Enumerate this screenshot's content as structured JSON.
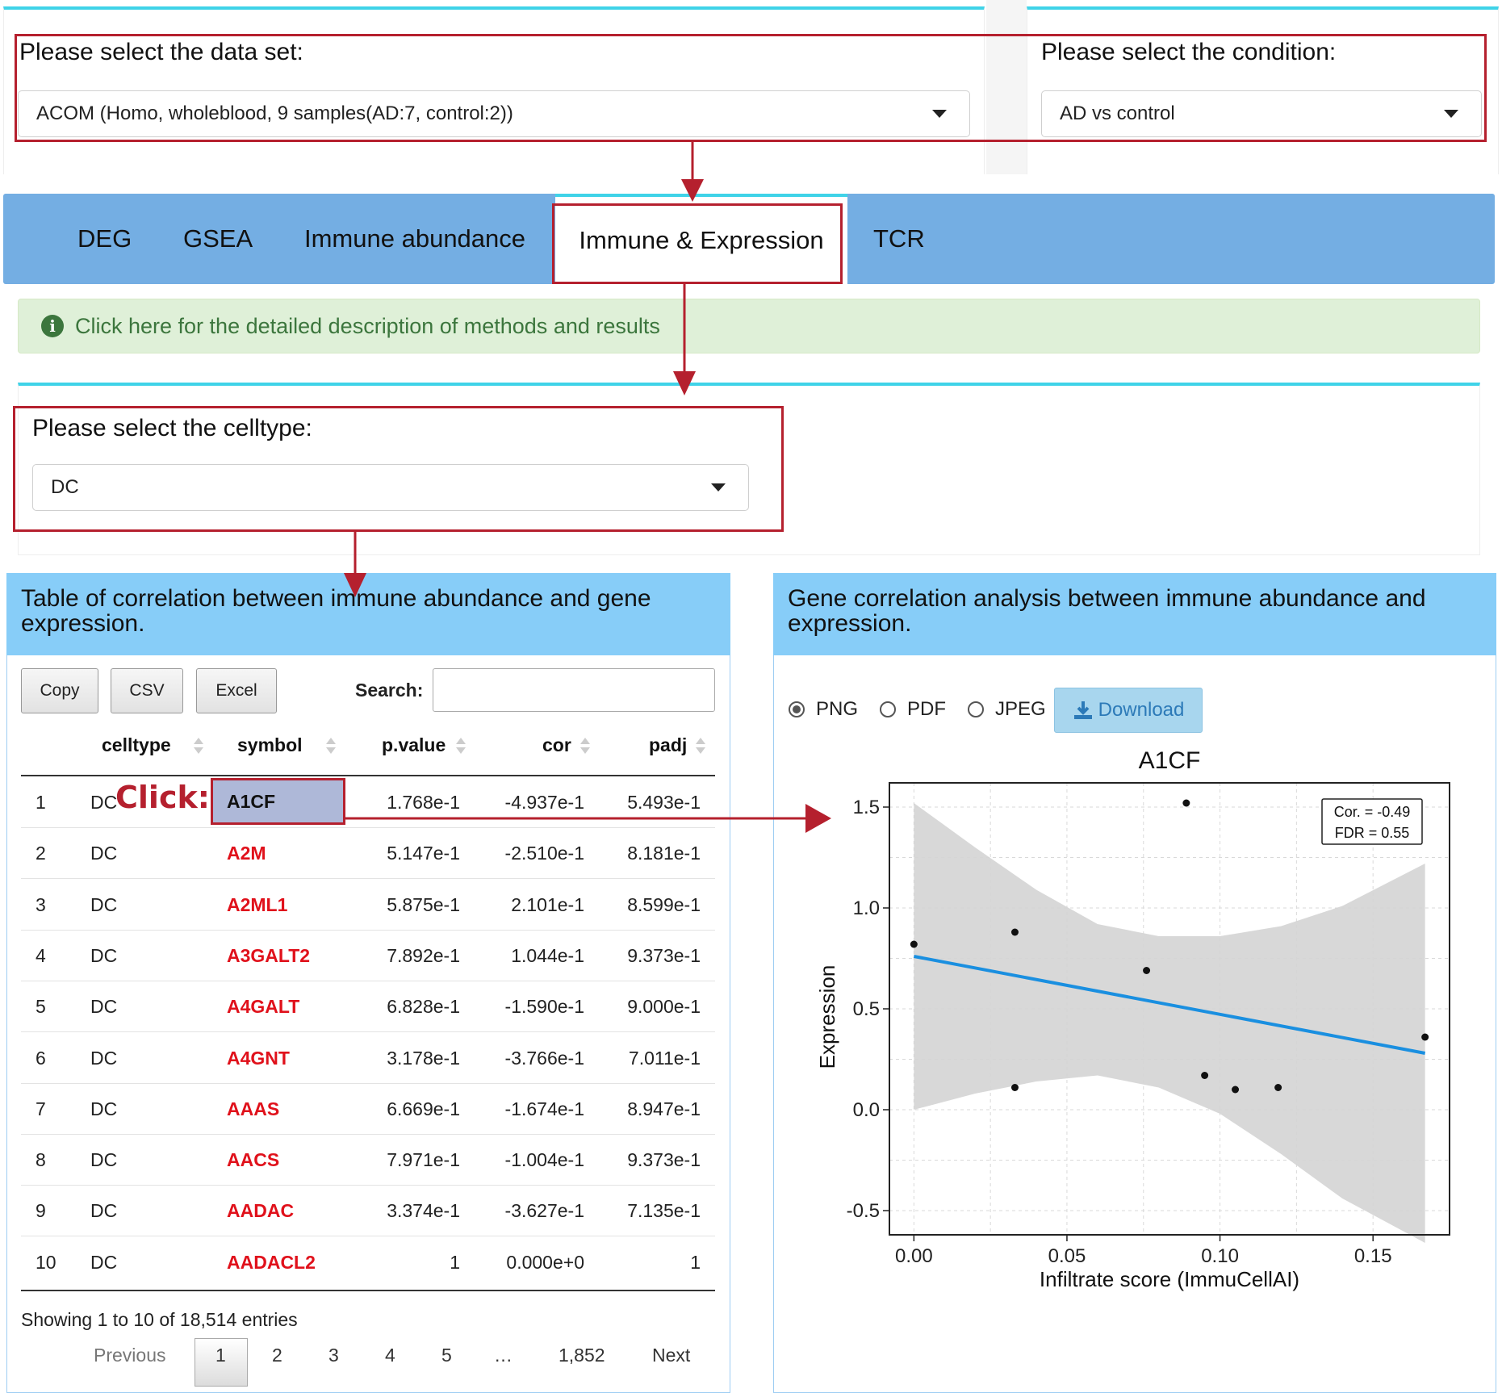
{
  "dataset": {
    "label": "Please select the data set:",
    "value": "ACOM (Homo, wholeblood, 9 samples(AD:7, control:2))"
  },
  "condition": {
    "label": "Please select the condition:",
    "value": "AD vs control"
  },
  "tabs": [
    {
      "label": "DEG"
    },
    {
      "label": "GSEA"
    },
    {
      "label": "Immune abundance"
    },
    {
      "label": "Immune & Expression"
    },
    {
      "label": "TCR"
    }
  ],
  "alert": {
    "text": "Click here for the detailed description of methods and results"
  },
  "celltype": {
    "label": "Please select the celltype:",
    "value": "DC"
  },
  "table_panel": {
    "title": "Table of correlation between immune abundance and gene expression.",
    "buttons": [
      "Copy",
      "CSV",
      "Excel"
    ],
    "search_label": "Search:",
    "search_value": "",
    "columns": [
      "celltype",
      "symbol",
      "p.value",
      "cor",
      "padj"
    ],
    "rows": [
      {
        "idx": "1",
        "celltype": "DC",
        "symbol": "A1CF",
        "pvalue": "1.768e-1",
        "cor": "-4.937e-1",
        "padj": "5.493e-1"
      },
      {
        "idx": "2",
        "celltype": "DC",
        "symbol": "A2M",
        "pvalue": "5.147e-1",
        "cor": "-2.510e-1",
        "padj": "8.181e-1"
      },
      {
        "idx": "3",
        "celltype": "DC",
        "symbol": "A2ML1",
        "pvalue": "5.875e-1",
        "cor": "2.101e-1",
        "padj": "8.599e-1"
      },
      {
        "idx": "4",
        "celltype": "DC",
        "symbol": "A3GALT2",
        "pvalue": "7.892e-1",
        "cor": "1.044e-1",
        "padj": "9.373e-1"
      },
      {
        "idx": "5",
        "celltype": "DC",
        "symbol": "A4GALT",
        "pvalue": "6.828e-1",
        "cor": "-1.590e-1",
        "padj": "9.000e-1"
      },
      {
        "idx": "6",
        "celltype": "DC",
        "symbol": "A4GNT",
        "pvalue": "3.178e-1",
        "cor": "-3.766e-1",
        "padj": "7.011e-1"
      },
      {
        "idx": "7",
        "celltype": "DC",
        "symbol": "AAAS",
        "pvalue": "6.669e-1",
        "cor": "-1.674e-1",
        "padj": "8.947e-1"
      },
      {
        "idx": "8",
        "celltype": "DC",
        "symbol": "AACS",
        "pvalue": "7.971e-1",
        "cor": "-1.004e-1",
        "padj": "9.373e-1"
      },
      {
        "idx": "9",
        "celltype": "DC",
        "symbol": "AADAC",
        "pvalue": "3.374e-1",
        "cor": "-3.627e-1",
        "padj": "7.135e-1"
      },
      {
        "idx": "10",
        "celltype": "DC",
        "symbol": "AADACL2",
        "pvalue": "1",
        "cor": "0.000e+0",
        "padj": "1"
      }
    ],
    "info": "Showing 1 to 10 of 18,514 entries",
    "pagination": {
      "previous": "Previous",
      "pages": [
        "1",
        "2",
        "3",
        "4",
        "5",
        "…",
        "1,852"
      ],
      "current": "1",
      "next": "Next"
    },
    "click_annotation": "Click:"
  },
  "plot_panel": {
    "title": "Gene correlation analysis between immune abundance and expression.",
    "formats": [
      "PNG",
      "PDF",
      "JPEG"
    ],
    "selected_format": "PNG",
    "download_label": "Download"
  },
  "chart_data": {
    "type": "scatter",
    "title": "A1CF",
    "xlabel": "Infiltrate score (ImmuCellAI)",
    "ylabel": "Expression",
    "xlim": [
      -0.008,
      0.175
    ],
    "ylim": [
      -0.62,
      1.62
    ],
    "x_ticks": [
      0.0,
      0.05,
      0.1,
      0.15
    ],
    "x_tick_labels": [
      "0.00",
      "0.05",
      "0.10",
      "0.15"
    ],
    "y_ticks": [
      -0.5,
      0.0,
      0.5,
      1.0,
      1.5
    ],
    "y_tick_labels": [
      "-0.5",
      "0.0",
      "0.5",
      "1.0",
      "1.5"
    ],
    "points": [
      {
        "x": 0.0,
        "y": 0.82
      },
      {
        "x": 0.033,
        "y": 0.88
      },
      {
        "x": 0.033,
        "y": 0.11
      },
      {
        "x": 0.076,
        "y": 0.69
      },
      {
        "x": 0.089,
        "y": 1.52
      },
      {
        "x": 0.095,
        "y": 0.17
      },
      {
        "x": 0.105,
        "y": 0.1
      },
      {
        "x": 0.119,
        "y": 0.11
      },
      {
        "x": 0.167,
        "y": 0.36
      }
    ],
    "fit_line": {
      "x": [
        0.0,
        0.167
      ],
      "y": [
        0.76,
        0.28
      ]
    },
    "ci_band": {
      "x": [
        0.0,
        0.02,
        0.04,
        0.06,
        0.08,
        0.1,
        0.12,
        0.14,
        0.167
      ],
      "upper": [
        1.52,
        1.3,
        1.09,
        0.92,
        0.86,
        0.86,
        0.91,
        1.01,
        1.22
      ],
      "lower": [
        0.0,
        0.08,
        0.14,
        0.17,
        0.11,
        -0.02,
        -0.22,
        -0.44,
        -0.66
      ]
    },
    "annotation": [
      "Cor. = -0.49",
      "FDR = 0.55"
    ],
    "grid": true,
    "colors": {
      "points": "#111111",
      "fit_line": "#1a8fe0",
      "ci_band": "#d4d4d4"
    }
  }
}
